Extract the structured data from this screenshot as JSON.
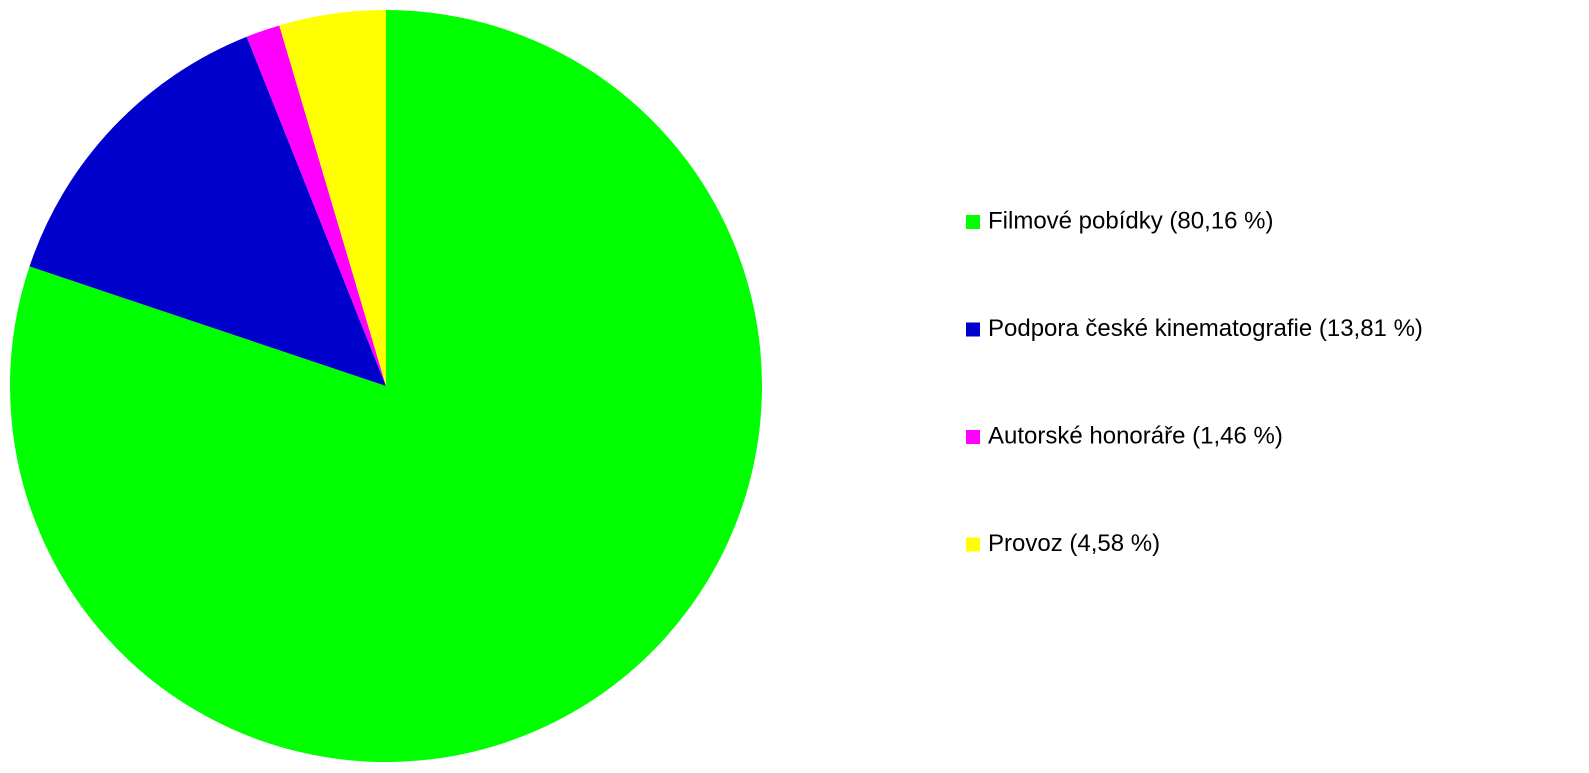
{
  "chart_data": {
    "type": "pie",
    "categories": [
      "Filmové pobídky (80,16 %)",
      "Podpora české kinematografie (13,81 %)",
      "Autorské honoráře (1,46 %)",
      "Provoz (4,58 %)"
    ],
    "values": [
      80.16,
      13.81,
      1.46,
      4.58
    ],
    "colors": [
      "#00ff00",
      "#0000cc",
      "#ff00ff",
      "#ffff00"
    ],
    "legend": "right"
  }
}
